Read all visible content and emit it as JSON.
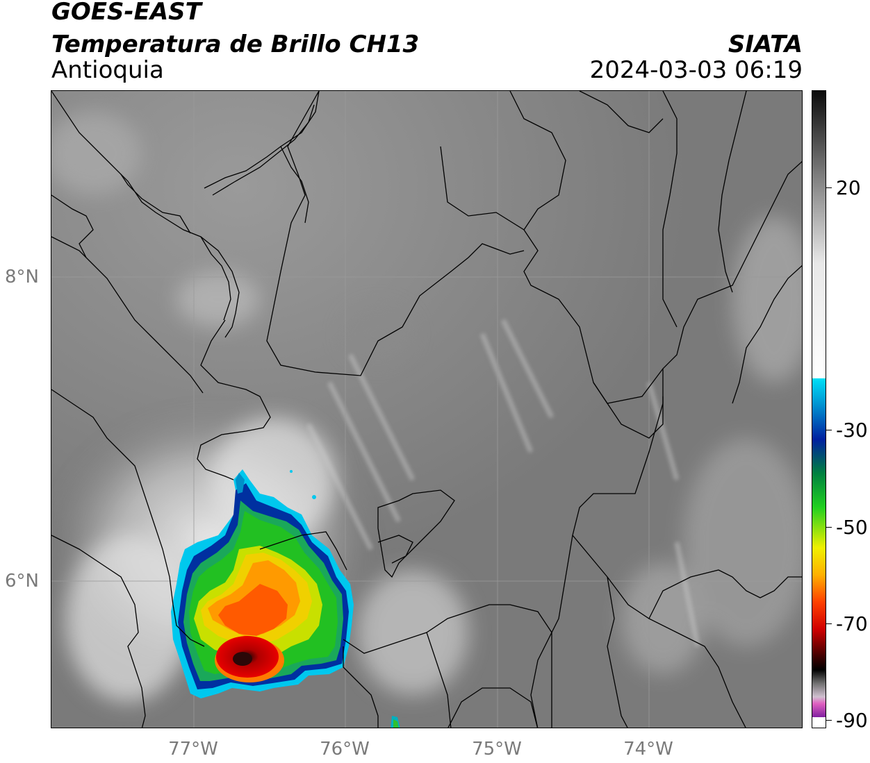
{
  "header": {
    "satellite": "GOES-EAST",
    "product": "Temperatura de Brillo CH13",
    "region": "Antioquia",
    "agency": "SIATA",
    "datetime": "2024-03-03 06:19"
  },
  "map": {
    "latitude_labels": [
      "8°N",
      "6°N"
    ],
    "longitude_labels": [
      "77°W",
      "76°W",
      "75°W",
      "74°W"
    ],
    "gridlines": true,
    "basemap": "grayscale brightness temperature with department and country borders",
    "feature": "convective storm cluster",
    "colors": {
      "storm_cold_core": "#2a0a0a",
      "storm_red": "#e00000",
      "storm_orange": "#ff7a00",
      "storm_yellow": "#f0e000",
      "storm_green": "#20c020",
      "storm_blue": "#0030a0",
      "storm_cyan": "#00c8ee",
      "background_gray": "#767676"
    }
  },
  "colorbar": {
    "tick_labels": [
      "20",
      "-30",
      "-50",
      "-70",
      "-90"
    ]
  }
}
